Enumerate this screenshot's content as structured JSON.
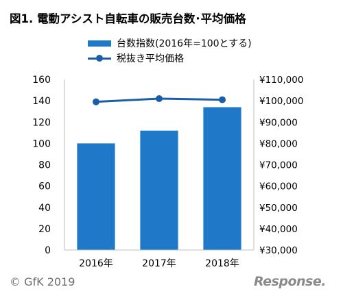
{
  "chart_data": {
    "type": "bar",
    "title": "図1. 電動アシスト自転車の販売台数･平均価格",
    "categories": [
      "2016年",
      "2017年",
      "2018年"
    ],
    "series": [
      {
        "name": "台数指数(2016年=100とする)",
        "type": "bar",
        "axis": "left",
        "values": [
          100,
          112,
          134
        ],
        "color": "#1f78c8"
      },
      {
        "name": "税抜き平均価格",
        "type": "line",
        "axis": "right",
        "values": [
          99500,
          101000,
          100500
        ],
        "color": "#1a5ea9"
      }
    ],
    "ylim_left": [
      0,
      160
    ],
    "yticks_left": [
      "0",
      "20",
      "40",
      "60",
      "80",
      "100",
      "120",
      "140",
      "160"
    ],
    "ylim_right": [
      30000,
      110000
    ],
    "yticks_right": [
      "¥30,000",
      "¥40,000",
      "¥50,000",
      "¥60,000",
      "¥70,000",
      "¥80,000",
      "¥90,000",
      "¥100,000",
      "¥110,000"
    ],
    "grid": false,
    "legend_position": "top"
  },
  "footer": {
    "copyright": "© GfK 2019",
    "watermark": "Response."
  }
}
